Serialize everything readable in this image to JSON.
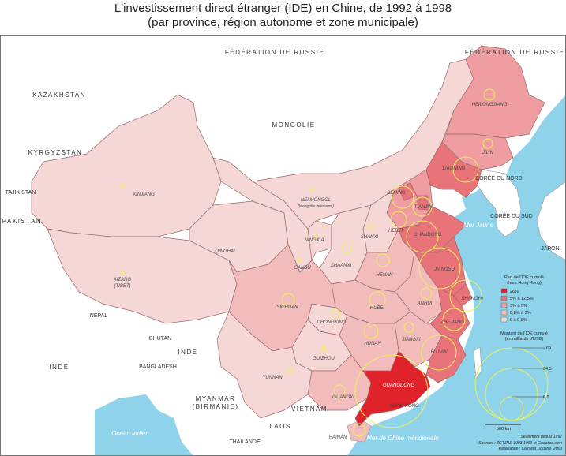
{
  "title": "L'investissement direct étranger (IDE) en Chine, de 1992 à 1998",
  "subtitle": "(par province, région autonome et zone municipale)",
  "colors": {
    "sea": "#8fd3ea",
    "land": "#ffffff",
    "class_26": "#e0232b",
    "class_5_12": "#e8747a",
    "class_3_5": "#ef9da0",
    "class_0_8_3": "#f2bcbc",
    "class_0_0_8": "#f5d7d5",
    "circle": "#eef05a"
  },
  "countries": {
    "russia_top": "FÉDÉRATION DE RUSSIE",
    "russia_ne": "FÉDÉRATION DE RUSSIE",
    "kazakhstan": "KAZAKHSTAN",
    "mongolia": "MONGOLIE",
    "kyrgyzstan": "KYRGYZSTAN",
    "tajikistan": "TAJIKISTAN",
    "pakistan": "PAKISTAN",
    "nepal": "NÉPAL",
    "bhutan": "BHUTAN",
    "inde": "INDE",
    "inde2": "INDE",
    "bangladesh": "BANGLADESH",
    "myanmar": "MYANMAR",
    "birmanie": "(BIRMANIE)",
    "laos": "LAOS",
    "vietnam": "VIETNAM",
    "thailande": "THAÏLANDE",
    "coree_nord": "CORÉE DU NORD",
    "coree_sud": "CORÉE DU SUD",
    "japon": "JAPON"
  },
  "seas": {
    "mer_jaune": "Mer Jaune",
    "mer_chine": "Mer de Chine méridionale",
    "ocean_indien": "Océan Indien"
  },
  "provinces": {
    "heilongjiang": "HEILONGJIANG",
    "jilin": "JILIN",
    "liaoning": "LIAONING",
    "xinjiang": "XINJIANG",
    "nei_mongol": "NEI MONGOL",
    "nei_mongol_sub": "(Mongolie intérieure)",
    "beijing": "BEIJING",
    "tianjin": "TIANJIN",
    "hebei": "HEBEI",
    "shanxi": "SHANXI",
    "ningxia": "NINGXIA",
    "shandong": "SHANDONG",
    "qinghai": "QINGHAI",
    "gansu": "GANSU",
    "shaanxi": "SHAANXI",
    "henan": "HENAN",
    "jiangsu": "JIANGSU",
    "xizang": "XIZANG",
    "tibet": "(TIBET)",
    "anhui": "ANHUI",
    "shanghai": "SHANGHAI",
    "sichuan": "SICHUAN",
    "hubei": "HUBEI",
    "zhejiang": "ZHEJIANG",
    "chongqing": "CHONGKING",
    "hunan": "HUNAN",
    "jiangxi": "JIANGXI",
    "fujian": "FUJIAN",
    "guizhou": "GUIZHOU",
    "yunnan": "YUNNAN",
    "guangxi": "GUANGXI",
    "guangdong": "GUANGDONG",
    "hong_kong": "HONG KONG",
    "hainan": "HAINAN"
  },
  "legend": {
    "title1": "Part de l'IDE cumulé",
    "title2": "(hors Hong Kong)",
    "classes": [
      "26%",
      "5% à 12,5%",
      "3% à 5%",
      "0,8% à 3%",
      "0 à 0,8%"
    ],
    "amount_title1": "Montant de l'IDE cumulé",
    "amount_title2": "(en milliards d'USD)",
    "amount_values": [
      "69",
      "34,5",
      "6,9"
    ],
    "amount_values_raw": [
      69,
      34.5,
      6.9
    ],
    "scale_label": "500 km"
  },
  "sources": {
    "note": "* Seulement depuis 1997",
    "line1": "Sources : ZGTJNJ, 1993-1999 et Geoatlas.com",
    "line2": "Réalisation : Clément Dodane, 2003"
  }
}
